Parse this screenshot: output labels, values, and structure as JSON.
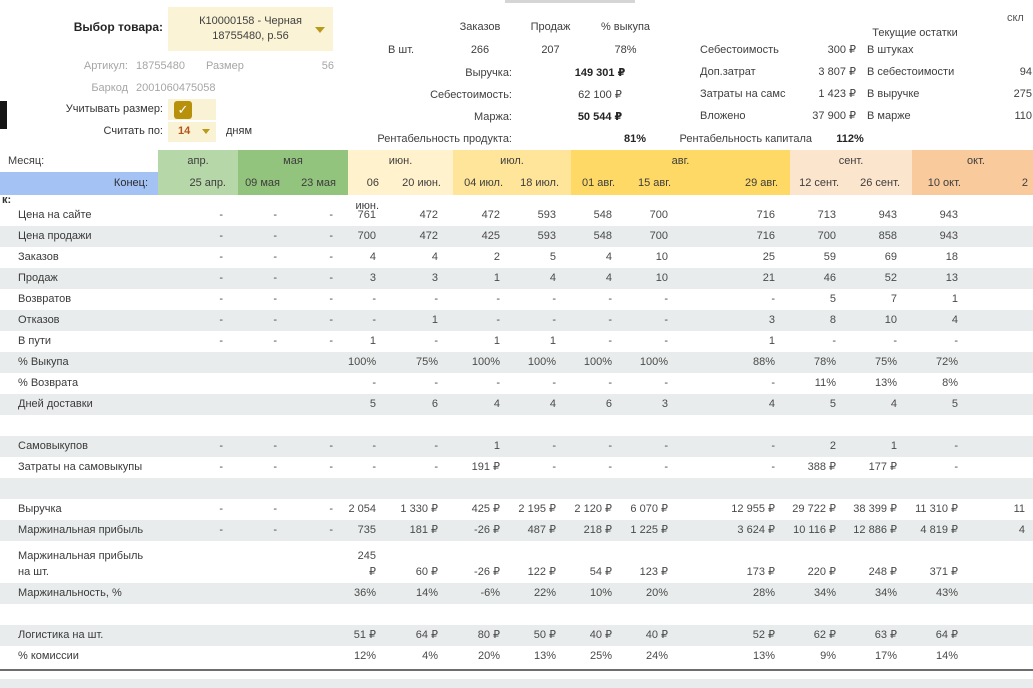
{
  "product": {
    "select_label": "Выбор товара:",
    "select_value_line1": "К10000158 - Черная",
    "select_value_line2": "18755480, р.56",
    "article_label": "Артикул:",
    "article_value": "18755480",
    "size_label": "Размер",
    "size_value": "56",
    "barcode_label": "Баркод",
    "barcode_value": "2001060475058",
    "consider_size_label": "Учитывать размер:",
    "consider_size_checkmark": "✓",
    "count_by_label": "Считать по:",
    "count_by_value": "14",
    "count_by_unit": "дням"
  },
  "summary": {
    "columns": [
      "Заказов",
      "Продаж",
      "% выкупа"
    ],
    "units_row_label": "В шт.",
    "units_row_values": [
      "266",
      "207",
      "78%"
    ],
    "revenue_label": "Выручка:",
    "revenue_value": "149 301 ₽",
    "cost_label": "Себестоимость:",
    "cost_value": "62 100 ₽",
    "margin_label": "Маржа:",
    "margin_value": "50 544 ₽",
    "product_profitability_label": "Рентабельность продукта:",
    "product_profitability_value": "81%"
  },
  "costs": {
    "rows": [
      {
        "label": "Себестоимость",
        "value": "300 ₽"
      },
      {
        "label": "Доп.затрат",
        "value": "3 807 ₽"
      },
      {
        "label": "Затраты на самс",
        "value": "1 423 ₽"
      },
      {
        "label": "Вложено",
        "value": "37 900 ₽"
      }
    ],
    "capital_profitability_label": "Рентабельность капитала",
    "capital_profitability_value": "112%"
  },
  "stock": {
    "title": "Текущие остатки",
    "clipped_corner_text": "скл",
    "rows": [
      {
        "label": "В штуках",
        "value": ""
      },
      {
        "label": "В себестоимости",
        "value": "94"
      },
      {
        "label": "В выручке",
        "value": "275"
      },
      {
        "label": "В марже",
        "value": "110"
      }
    ]
  },
  "table": {
    "month_row_label": "Месяц:",
    "end_row_label": "Конец:",
    "left_clipped_text": "к:",
    "months": [
      {
        "label": "апр.",
        "span": 1,
        "color": "#b6d7a8"
      },
      {
        "label": "мая",
        "span": 2,
        "color": "#93c47d"
      },
      {
        "label": "июн.",
        "span": 2,
        "color": "#fff2cc"
      },
      {
        "label": "июл.",
        "span": 2,
        "color": "#ffe599"
      },
      {
        "label": "авг.",
        "span": 3,
        "color": "#ffd966"
      },
      {
        "label": "сент.",
        "span": 2,
        "color": "#fce5cd"
      },
      {
        "label": "окт.",
        "span": 2,
        "color": "#f9cb9c"
      }
    ],
    "dates": [
      "25 апр.",
      "09 мая",
      "23 мая",
      "06 июн.",
      "20 июн.",
      "04 июл.",
      "18 июл.",
      "01 авг.",
      "15 авг.",
      "29 авг.",
      "12 сент.",
      "26 сент.",
      "10 окт.",
      "2"
    ],
    "rows": [
      {
        "label": "Цена на сайте",
        "values": [
          "-",
          "-",
          "-",
          "761",
          "472",
          "472",
          "593",
          "548",
          "700",
          "716",
          "713",
          "943",
          "943",
          ""
        ]
      },
      {
        "label": "Цена продажи",
        "values": [
          "-",
          "-",
          "-",
          "700",
          "472",
          "425",
          "593",
          "548",
          "700",
          "716",
          "700",
          "858",
          "943",
          ""
        ]
      },
      {
        "label": "Заказов",
        "values": [
          "-",
          "-",
          "-",
          "4",
          "4",
          "2",
          "5",
          "4",
          "10",
          "25",
          "59",
          "69",
          "18",
          ""
        ]
      },
      {
        "label": "Продаж",
        "values": [
          "-",
          "-",
          "-",
          "3",
          "3",
          "1",
          "4",
          "4",
          "10",
          "21",
          "46",
          "52",
          "13",
          ""
        ]
      },
      {
        "label": "Возвратов",
        "values": [
          "-",
          "-",
          "-",
          "-",
          "-",
          "-",
          "-",
          "-",
          "-",
          "-",
          "5",
          "7",
          "1",
          ""
        ]
      },
      {
        "label": "Отказов",
        "values": [
          "-",
          "-",
          "-",
          "-",
          "1",
          "-",
          "-",
          "-",
          "-",
          "3",
          "8",
          "10",
          "4",
          ""
        ]
      },
      {
        "label": "В пути",
        "values": [
          "-",
          "-",
          "-",
          "1",
          "-",
          "1",
          "1",
          "-",
          "-",
          "1",
          "-",
          "-",
          "-",
          ""
        ]
      },
      {
        "label": "% Выкупа",
        "values": [
          "",
          "",
          "",
          "100%",
          "75%",
          "100%",
          "100%",
          "100%",
          "100%",
          "88%",
          "78%",
          "75%",
          "72%",
          ""
        ]
      },
      {
        "label": "% Возврата",
        "values": [
          "",
          "",
          "",
          "-",
          "-",
          "-",
          "-",
          "-",
          "-",
          "-",
          "11%",
          "13%",
          "8%",
          ""
        ]
      },
      {
        "label": "Дней доставки",
        "values": [
          "",
          "",
          "",
          "5",
          "6",
          "4",
          "4",
          "6",
          "3",
          "4",
          "5",
          "4",
          "5",
          ""
        ]
      },
      {
        "type": "blank",
        "label": "",
        "values": []
      },
      {
        "label": "Самовыкупов",
        "values": [
          "-",
          "-",
          "-",
          "-",
          "-",
          "1",
          "-",
          "-",
          "-",
          "-",
          "2",
          "1",
          "-",
          ""
        ]
      },
      {
        "label": "Затраты на самовыкупы",
        "values": [
          "-",
          "-",
          "-",
          "-",
          "-",
          "191 ₽",
          "-",
          "-",
          "-",
          "-",
          "388 ₽",
          "177 ₽",
          "-",
          ""
        ]
      },
      {
        "type": "blank",
        "label": "",
        "values": []
      },
      {
        "label": "Выручка",
        "values": [
          "-",
          "-",
          "-",
          "2 054 ₽",
          "1 330 ₽",
          "425 ₽",
          "2 195 ₽",
          "2 120 ₽",
          "6 070 ₽",
          "12 955 ₽",
          "29 722 ₽",
          "38 399 ₽",
          "11 310 ₽",
          "11"
        ]
      },
      {
        "label": "Маржинальная прибыль",
        "values": [
          "-",
          "-",
          "-",
          "735 ₽",
          "181 ₽",
          "-26 ₽",
          "487 ₽",
          "218 ₽",
          "1 225 ₽",
          "3 624 ₽",
          "10 116 ₽",
          "12 886 ₽",
          "4 819 ₽",
          "4"
        ]
      },
      {
        "label": "Маржинальная прибыль\nна шт.",
        "values": [
          "",
          "",
          "",
          "245 ₽",
          "60 ₽",
          "-26 ₽",
          "122 ₽",
          "54 ₽",
          "123 ₽",
          "173 ₽",
          "220 ₽",
          "248 ₽",
          "371 ₽",
          ""
        ]
      },
      {
        "label": "Маржинальность, %",
        "values": [
          "",
          "",
          "",
          "36%",
          "14%",
          "-6%",
          "22%",
          "10%",
          "20%",
          "28%",
          "34%",
          "34%",
          "43%",
          ""
        ]
      },
      {
        "type": "blank",
        "label": "",
        "values": []
      },
      {
        "label": "Логистика на шт.",
        "values": [
          "",
          "",
          "",
          "51 ₽",
          "64 ₽",
          "80 ₽",
          "50 ₽",
          "40 ₽",
          "40 ₽",
          "52 ₽",
          "62 ₽",
          "63 ₽",
          "64 ₽",
          ""
        ]
      },
      {
        "label": "% комиссии",
        "values": [
          "",
          "",
          "",
          "12%",
          "4%",
          "20%",
          "13%",
          "25%",
          "24%",
          "13%",
          "9%",
          "17%",
          "14%",
          ""
        ]
      }
    ]
  }
}
